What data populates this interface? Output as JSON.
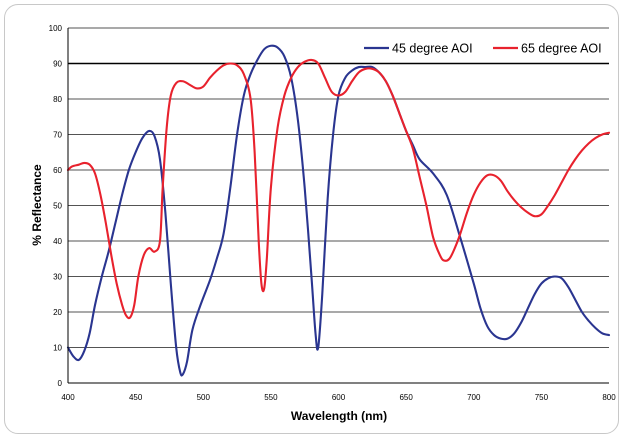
{
  "chart_data": {
    "type": "line",
    "xlabel": "Wavelength (nm)",
    "ylabel": "% Reflectance",
    "xlim": [
      400,
      800
    ],
    "ylim": [
      0,
      100
    ],
    "xticks": [
      400,
      450,
      500,
      550,
      600,
      650,
      700,
      750,
      800
    ],
    "yticks": [
      0,
      10,
      20,
      30,
      40,
      50,
      60,
      70,
      80,
      90,
      100
    ],
    "grid": "horizontal",
    "reference_line_y": 90,
    "legend_position": "top-right",
    "series": [
      {
        "name": "45 degree AOI",
        "color": "#2a3590",
        "points": [
          [
            400,
            10
          ],
          [
            404,
            7.5
          ],
          [
            408,
            6.5
          ],
          [
            412,
            9
          ],
          [
            416,
            14
          ],
          [
            420,
            22
          ],
          [
            425,
            30
          ],
          [
            430,
            37
          ],
          [
            435,
            45
          ],
          [
            440,
            53
          ],
          [
            445,
            60
          ],
          [
            450,
            65
          ],
          [
            455,
            69
          ],
          [
            460,
            71
          ],
          [
            464,
            69.5
          ],
          [
            468,
            63
          ],
          [
            472,
            48
          ],
          [
            476,
            28
          ],
          [
            480,
            10
          ],
          [
            483,
            3
          ],
          [
            485,
            2.5
          ],
          [
            488,
            6
          ],
          [
            492,
            15
          ],
          [
            498,
            22
          ],
          [
            505,
            29
          ],
          [
            510,
            35
          ],
          [
            515,
            42
          ],
          [
            520,
            55
          ],
          [
            525,
            70
          ],
          [
            530,
            81
          ],
          [
            535,
            87
          ],
          [
            540,
            91
          ],
          [
            545,
            94
          ],
          [
            550,
            95
          ],
          [
            555,
            94.5
          ],
          [
            560,
            92
          ],
          [
            565,
            86
          ],
          [
            570,
            74
          ],
          [
            575,
            55
          ],
          [
            580,
            30
          ],
          [
            583,
            14
          ],
          [
            585,
            10
          ],
          [
            588,
            25
          ],
          [
            592,
            52
          ],
          [
            596,
            70
          ],
          [
            600,
            81
          ],
          [
            605,
            86
          ],
          [
            610,
            88
          ],
          [
            615,
            89
          ],
          [
            620,
            89
          ],
          [
            625,
            89
          ],
          [
            630,
            87.5
          ],
          [
            635,
            85
          ],
          [
            640,
            81
          ],
          [
            645,
            76
          ],
          [
            650,
            71
          ],
          [
            655,
            67
          ],
          [
            660,
            63
          ],
          [
            670,
            59
          ],
          [
            680,
            53
          ],
          [
            690,
            41
          ],
          [
            700,
            28
          ],
          [
            705,
            21
          ],
          [
            710,
            16
          ],
          [
            715,
            13.5
          ],
          [
            720,
            12.5
          ],
          [
            725,
            12.5
          ],
          [
            730,
            14
          ],
          [
            735,
            17
          ],
          [
            740,
            21
          ],
          [
            745,
            25
          ],
          [
            750,
            28
          ],
          [
            755,
            29.5
          ],
          [
            760,
            30
          ],
          [
            765,
            29.5
          ],
          [
            770,
            27
          ],
          [
            775,
            23.5
          ],
          [
            780,
            20
          ],
          [
            785,
            17.5
          ],
          [
            790,
            15.5
          ],
          [
            795,
            14
          ],
          [
            800,
            13.5
          ]
        ]
      },
      {
        "name": "65 degree AOI",
        "color": "#e8222d",
        "points": [
          [
            400,
            60
          ],
          [
            403,
            61
          ],
          [
            408,
            61.5
          ],
          [
            412,
            62
          ],
          [
            416,
            61.5
          ],
          [
            420,
            59
          ],
          [
            424,
            53
          ],
          [
            428,
            45
          ],
          [
            432,
            36
          ],
          [
            436,
            28
          ],
          [
            440,
            22
          ],
          [
            443,
            19
          ],
          [
            446,
            18.5
          ],
          [
            449,
            22
          ],
          [
            452,
            30
          ],
          [
            456,
            36
          ],
          [
            460,
            38
          ],
          [
            464,
            37
          ],
          [
            468,
            40
          ],
          [
            470,
            55
          ],
          [
            473,
            72
          ],
          [
            476,
            81
          ],
          [
            480,
            84.5
          ],
          [
            485,
            85
          ],
          [
            490,
            84
          ],
          [
            495,
            83
          ],
          [
            500,
            83.5
          ],
          [
            505,
            86
          ],
          [
            510,
            88
          ],
          [
            515,
            89.5
          ],
          [
            520,
            90
          ],
          [
            525,
            89.5
          ],
          [
            530,
            87
          ],
          [
            535,
            80
          ],
          [
            538,
            65
          ],
          [
            541,
            40
          ],
          [
            543,
            28
          ],
          [
            545,
            26.5
          ],
          [
            547,
            35
          ],
          [
            550,
            55
          ],
          [
            555,
            72
          ],
          [
            560,
            81
          ],
          [
            565,
            86
          ],
          [
            570,
            89
          ],
          [
            575,
            90.5
          ],
          [
            580,
            91
          ],
          [
            585,
            90
          ],
          [
            590,
            86
          ],
          [
            595,
            82
          ],
          [
            600,
            81
          ],
          [
            605,
            82
          ],
          [
            610,
            85
          ],
          [
            615,
            87.5
          ],
          [
            620,
            88.5
          ],
          [
            625,
            88.5
          ],
          [
            630,
            87.5
          ],
          [
            635,
            85
          ],
          [
            640,
            81
          ],
          [
            645,
            76
          ],
          [
            650,
            71
          ],
          [
            655,
            66
          ],
          [
            660,
            58
          ],
          [
            665,
            50
          ],
          [
            670,
            41
          ],
          [
            675,
            36
          ],
          [
            678,
            34.5
          ],
          [
            682,
            35
          ],
          [
            686,
            38
          ],
          [
            690,
            42
          ],
          [
            695,
            48
          ],
          [
            700,
            53
          ],
          [
            705,
            56.5
          ],
          [
            710,
            58.5
          ],
          [
            715,
            58.5
          ],
          [
            720,
            57
          ],
          [
            725,
            54
          ],
          [
            730,
            51.5
          ],
          [
            735,
            49.5
          ],
          [
            740,
            48
          ],
          [
            745,
            47
          ],
          [
            750,
            47.5
          ],
          [
            755,
            50
          ],
          [
            760,
            53
          ],
          [
            765,
            56.5
          ],
          [
            770,
            60
          ],
          [
            775,
            63
          ],
          [
            780,
            65.5
          ],
          [
            785,
            67.5
          ],
          [
            790,
            69
          ],
          [
            795,
            70
          ],
          [
            800,
            70.5
          ]
        ]
      }
    ]
  }
}
